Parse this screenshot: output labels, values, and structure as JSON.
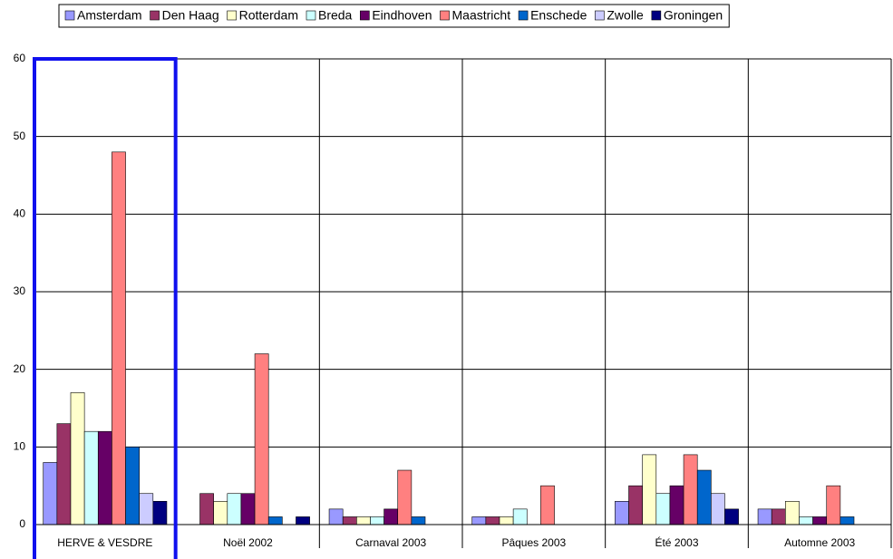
{
  "chart_data": {
    "type": "bar",
    "categories": [
      "HERVE & VESDRE",
      "Noël 2002",
      "Carnaval 2003",
      "Pâques 2003",
      "Été 2003",
      "Automne 2003"
    ],
    "series": [
      {
        "name": "Amsterdam",
        "color": "#9999ff",
        "values": [
          8,
          0,
          2,
          1,
          3,
          2
        ]
      },
      {
        "name": "Den Haag",
        "color": "#993366",
        "values": [
          13,
          4,
          1,
          1,
          5,
          2
        ]
      },
      {
        "name": "Rotterdam",
        "color": "#ffffcc",
        "values": [
          17,
          3,
          1,
          1,
          9,
          3
        ]
      },
      {
        "name": "Breda",
        "color": "#ccffff",
        "values": [
          12,
          4,
          1,
          2,
          4,
          1
        ]
      },
      {
        "name": "Eindhoven",
        "color": "#660066",
        "values": [
          12,
          4,
          2,
          0,
          5,
          1
        ]
      },
      {
        "name": "Maastricht",
        "color": "#ff8080",
        "values": [
          48,
          22,
          7,
          5,
          9,
          5
        ]
      },
      {
        "name": "Enschede",
        "color": "#0066cc",
        "values": [
          10,
          1,
          1,
          0,
          7,
          1
        ]
      },
      {
        "name": "Zwolle",
        "color": "#ccccff",
        "values": [
          4,
          0,
          0,
          0,
          4,
          0
        ]
      },
      {
        "name": "Groningen",
        "color": "#000080",
        "values": [
          3,
          1,
          0,
          0,
          2,
          0
        ]
      }
    ],
    "ylim": [
      0,
      60
    ],
    "yticks": [
      0,
      10,
      20,
      30,
      40,
      50,
      60
    ],
    "grid": true,
    "legend": "top"
  }
}
